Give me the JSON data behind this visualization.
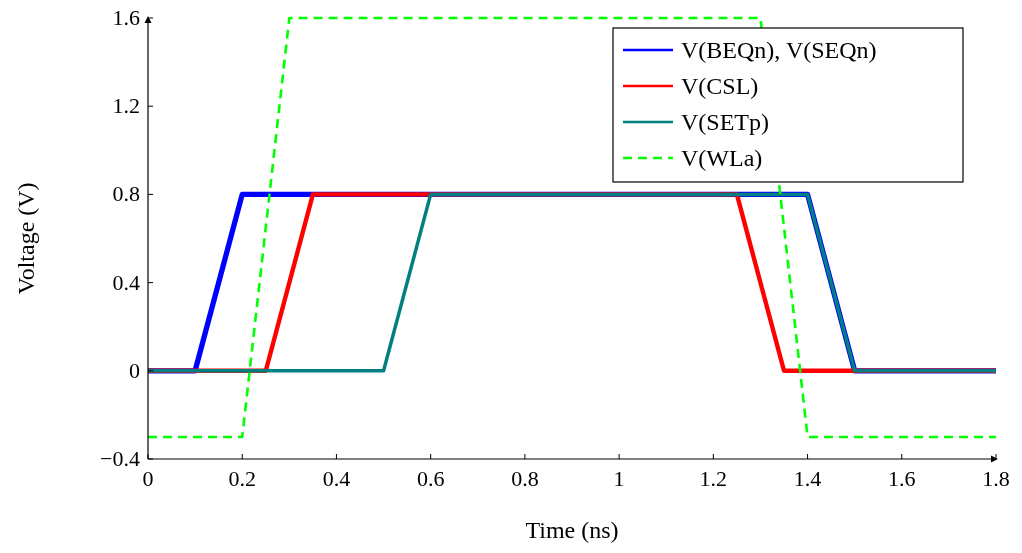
{
  "chart_data": {
    "type": "line",
    "xlabel": "Time (ns)",
    "ylabel": "Voltage (V)",
    "xlim": [
      0,
      1.8
    ],
    "xticks": [
      0,
      0.2,
      0.4,
      0.6,
      0.8,
      1,
      1.2,
      1.4,
      1.6,
      1.8
    ],
    "ylim": [
      -0.4,
      1.6
    ],
    "yticks": [
      {
        "value": -0.4,
        "label": "−0.4"
      },
      0,
      0.4,
      0.8,
      1.2,
      1.6
    ],
    "grid": false,
    "legend": "top right",
    "marker": "none",
    "series": [
      {
        "name": "V(BEQn), V(SEQn)",
        "color": "#0000ff",
        "x": [
          0,
          0.1,
          0.2,
          1.4,
          1.5,
          1.8
        ],
        "values": [
          0,
          0,
          0.8,
          0.8,
          0,
          0
        ]
      },
      {
        "name": "V(CSL)",
        "color": "#ff0000",
        "x": [
          0,
          0.25,
          0.35,
          1.25,
          1.35,
          1.8
        ],
        "values": [
          0,
          0,
          0.8,
          0.8,
          0,
          0
        ]
      },
      {
        "name": "V(SETp)",
        "color": "#008080",
        "x": [
          0,
          0.5,
          0.6,
          1.4,
          1.5,
          1.8
        ],
        "values": [
          0,
          0,
          0.8,
          0.8,
          0,
          0
        ]
      },
      {
        "name": "V(WLa)",
        "color": "#00ff00",
        "line_style": "dashed",
        "x": [
          0,
          0.2,
          0.3,
          1.3,
          1.4,
          1.8
        ],
        "values": [
          -0.3,
          -0.3,
          1.6,
          1.6,
          -0.3,
          -0.3
        ]
      }
    ]
  }
}
